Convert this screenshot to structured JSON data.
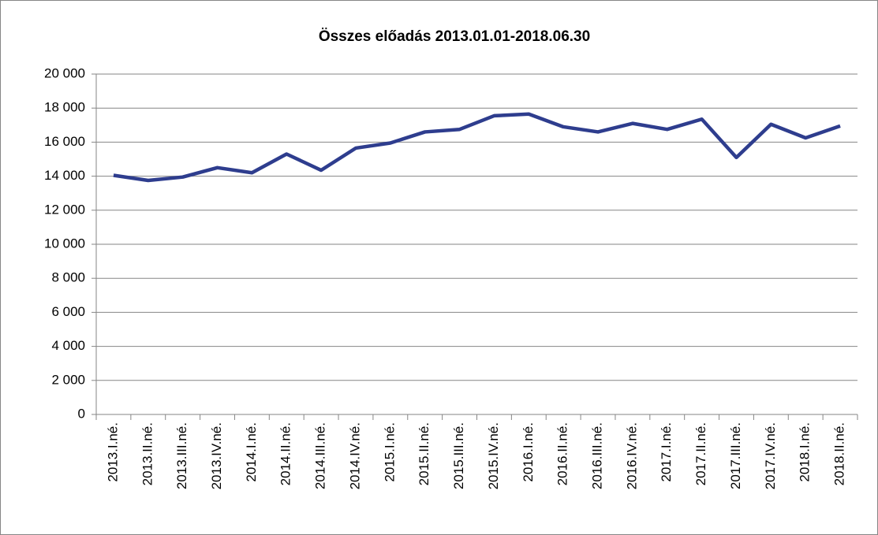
{
  "chart_data": {
    "type": "line",
    "title": "Összes előadás 2013.01.01-2018.06.30",
    "categories": [
      "2013.I.né.",
      "2013.II.né.",
      "2013.III.né.",
      "2013.IV.né.",
      "2014.I.né.",
      "2014.II.né.",
      "2014.III.né.",
      "2014.IV.né.",
      "2015.I.né.",
      "2015.II.né.",
      "2015.III.né.",
      "2015.IV.né.",
      "2016.I.né.",
      "2016.II.né.",
      "2016.III.né.",
      "2016.IV.né.",
      "2017.I.né.",
      "2017.II.né.",
      "2017.III.né.",
      "2017.IV.né.",
      "2018.I.né.",
      "2018.II.né."
    ],
    "series": [
      {
        "name": "Összes előadás",
        "color": "#2e3d8e",
        "values": [
          14050,
          13750,
          13950,
          14500,
          14200,
          15300,
          14350,
          15650,
          15950,
          16600,
          16750,
          17550,
          17650,
          16900,
          16600,
          17100,
          16750,
          17350,
          15100,
          17050,
          16250,
          16950
        ]
      }
    ],
    "ylim": [
      0,
      20000
    ],
    "yticks": [
      0,
      {
        "value": 2000,
        "label": "2 000"
      },
      {
        "value": 4000,
        "label": "4 000"
      },
      {
        "value": 6000,
        "label": "6 000"
      },
      {
        "value": 8000,
        "label": "8 000"
      },
      {
        "value": 10000,
        "label": "10 000"
      },
      {
        "value": 12000,
        "label": "12 000"
      },
      {
        "value": 14000,
        "label": "14 000"
      },
      {
        "value": 16000,
        "label": "16 000"
      },
      {
        "value": 18000,
        "label": "18 000"
      },
      {
        "value": 20000,
        "label": "20 000"
      }
    ],
    "grid": true
  }
}
